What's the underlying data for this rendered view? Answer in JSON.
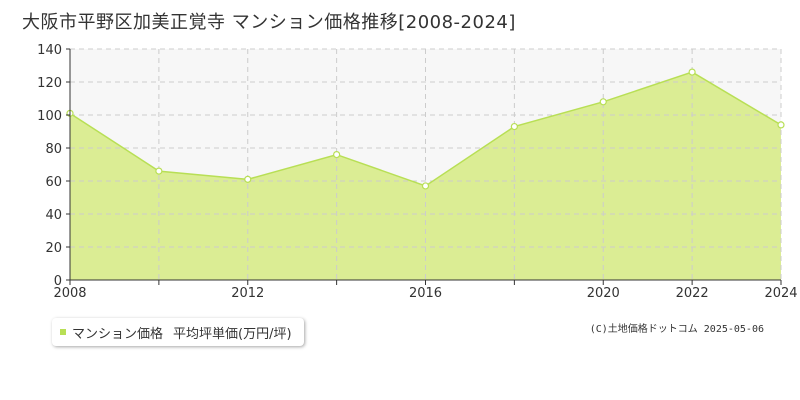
{
  "title": "大阪市平野区加美正覚寺 マンション価格推移[2008-2024]",
  "legend": {
    "series_label": "マンション価格",
    "unit_label": "平均坪単価(万円/坪)"
  },
  "copyright": "(C)土地価格ドットコム 2025-05-06",
  "colors": {
    "fill": "#dbed94",
    "line": "#b8df55",
    "marker": "#b8df55",
    "grid": "#cccccc",
    "plot_bg_upper": "#f7f7f7"
  },
  "chart_data": {
    "type": "area",
    "title": "大阪市平野区加美正覚寺 マンション価格推移[2008-2024]",
    "x": [
      2008,
      2010,
      2012,
      2014,
      2016,
      2018,
      2020,
      2022,
      2024
    ],
    "series": [
      {
        "name": "マンション価格",
        "values": [
          101,
          66,
          61,
          76,
          57,
          93,
          108,
          126,
          94
        ]
      }
    ],
    "x_ticks": [
      2008,
      2010,
      2012,
      2014,
      2016,
      2018,
      2020,
      2022,
      2024
    ],
    "x_tick_labels": [
      "2008",
      "",
      "2012",
      "",
      "2016",
      "",
      "2020",
      "2022",
      "2024"
    ],
    "y_ticks": [
      0,
      20,
      40,
      60,
      80,
      100,
      120,
      140
    ],
    "xlim": [
      2008,
      2024
    ],
    "ylim": [
      0,
      140
    ],
    "grid": true,
    "xlabel": "",
    "ylabel": ""
  }
}
